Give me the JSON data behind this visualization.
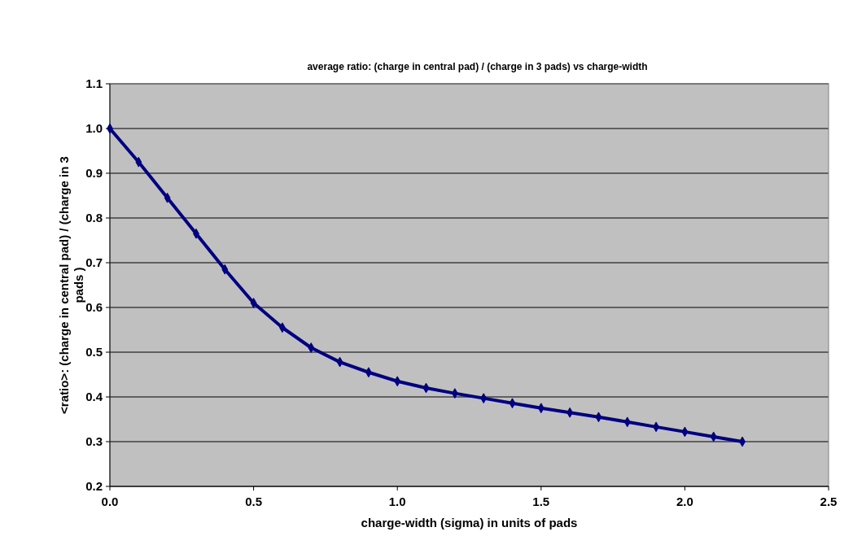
{
  "chart_data": {
    "type": "line",
    "title": "average ratio: (charge in central pad) / (charge in 3 pads) vs charge-width",
    "xlabel": "charge-width (sigma) in units of pads",
    "ylabel": "<ratio>: (charge in central pad) / (charge in 3 pads )",
    "x": [
      0,
      0.1,
      0.2,
      0.3,
      0.4,
      0.5,
      0.6,
      0.7,
      0.8,
      0.9,
      1.0,
      1.1,
      1.2,
      1.3,
      1.4,
      1.5,
      1.6,
      1.7,
      1.8,
      1.9,
      2.0,
      2.1,
      2.2
    ],
    "series": [
      {
        "color": "#000080",
        "values": [
          1.0,
          0.925,
          0.845,
          0.765,
          0.685,
          0.61,
          0.555,
          0.51,
          0.478,
          0.455,
          0.435,
          0.42,
          0.408,
          0.397,
          0.386,
          0.375,
          0.365,
          0.355,
          0.344,
          0.333,
          0.322,
          0.311,
          0.3
        ]
      }
    ],
    "xlim": [
      0,
      2.5
    ],
    "xticks": [
      {
        "value": 0,
        "label": "0.0"
      },
      {
        "value": 0.5,
        "label": "0.5"
      },
      {
        "value": 1,
        "label": "1.0"
      },
      {
        "value": 1.5,
        "label": "1.5"
      },
      {
        "value": 2,
        "label": "2.0"
      },
      {
        "value": 2.5,
        "label": "2.5"
      }
    ],
    "ylim": [
      0.2,
      1.1
    ],
    "yticks": [
      {
        "value": 0.2,
        "label": "0.2"
      },
      {
        "value": 0.3,
        "label": "0.3"
      },
      {
        "value": 0.4,
        "label": "0.4"
      },
      {
        "value": 0.5,
        "label": "0.5"
      },
      {
        "value": 0.6,
        "label": "0.6"
      },
      {
        "value": 0.7,
        "label": "0.7"
      },
      {
        "value": 0.8,
        "label": "0.8"
      },
      {
        "value": 0.9,
        "label": "0.9"
      },
      {
        "value": 1.0,
        "label": "1.0"
      },
      {
        "value": 1.1,
        "label": "1.1"
      }
    ],
    "grid": "y",
    "marker": "diamond",
    "line_style": "solid"
  }
}
